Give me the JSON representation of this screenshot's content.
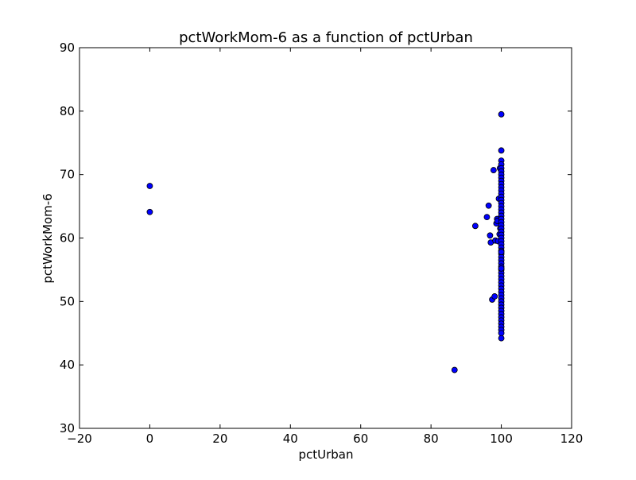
{
  "chart_data": {
    "type": "scatter",
    "title": "pctWorkMom-6 as a function of pctUrban",
    "xlabel": "pctUrban",
    "ylabel": "pctWorkMom-6",
    "xlim": [
      -20,
      120
    ],
    "ylim": [
      30,
      90
    ],
    "xticks": [
      -20,
      0,
      20,
      40,
      60,
      80,
      100,
      120
    ],
    "yticks": [
      30,
      40,
      50,
      60,
      70,
      80,
      90
    ],
    "xtick_labels": [
      "−20",
      "0",
      "20",
      "40",
      "60",
      "80",
      "100",
      "120"
    ],
    "ytick_labels": [
      "30",
      "40",
      "50",
      "60",
      "70",
      "80",
      "90"
    ],
    "grid": false,
    "marker_color": "#0000ff",
    "marker_edge_color": "#000000",
    "series": [
      {
        "x": [
          0,
          0,
          86.7,
          92.6,
          95.9,
          96.4,
          96.8,
          97.0,
          97.4,
          97.8,
          98.1,
          98.3,
          98.6,
          98.8,
          98.9,
          99.1,
          99.3,
          99.5,
          99.6,
          99.7,
          100,
          100,
          100,
          100,
          100,
          100,
          100,
          100,
          100,
          100,
          100,
          100,
          100,
          100,
          100,
          100,
          100,
          100,
          100,
          100,
          100,
          100,
          100,
          100,
          100,
          100,
          100,
          100,
          100,
          100,
          100,
          100,
          100,
          100,
          100,
          100,
          100,
          100,
          100,
          100,
          100,
          100,
          100,
          100,
          100,
          100,
          100,
          100,
          100,
          100,
          100,
          100,
          100,
          100,
          100,
          100,
          100,
          100,
          100,
          100
        ],
        "y": [
          68.2,
          64.1,
          39.2,
          61.9,
          63.3,
          65.1,
          60.4,
          59.3,
          50.3,
          70.7,
          50.8,
          59.6,
          62.3,
          63.0,
          62.7,
          59.5,
          66.2,
          60.6,
          71.0,
          61.5,
          79.5,
          73.8,
          72.2,
          71.6,
          71.0,
          70.5,
          70.0,
          69.5,
          69.0,
          68.5,
          68.0,
          67.5,
          67.0,
          66.5,
          66.0,
          65.5,
          65.0,
          64.5,
          64.0,
          63.5,
          63.0,
          62.5,
          62.0,
          61.5,
          61.0,
          60.5,
          60.0,
          59.5,
          59.0,
          58.5,
          58.0,
          57.5,
          57.0,
          56.5,
          56.0,
          55.5,
          55.0,
          54.5,
          54.0,
          53.5,
          53.0,
          52.5,
          52.0,
          51.5,
          51.0,
          50.5,
          50.0,
          49.5,
          49.0,
          48.5,
          48.0,
          47.5,
          47.0,
          46.5,
          46.0,
          45.5,
          45.0,
          44.2,
          57.8,
          55.2
        ]
      }
    ]
  }
}
